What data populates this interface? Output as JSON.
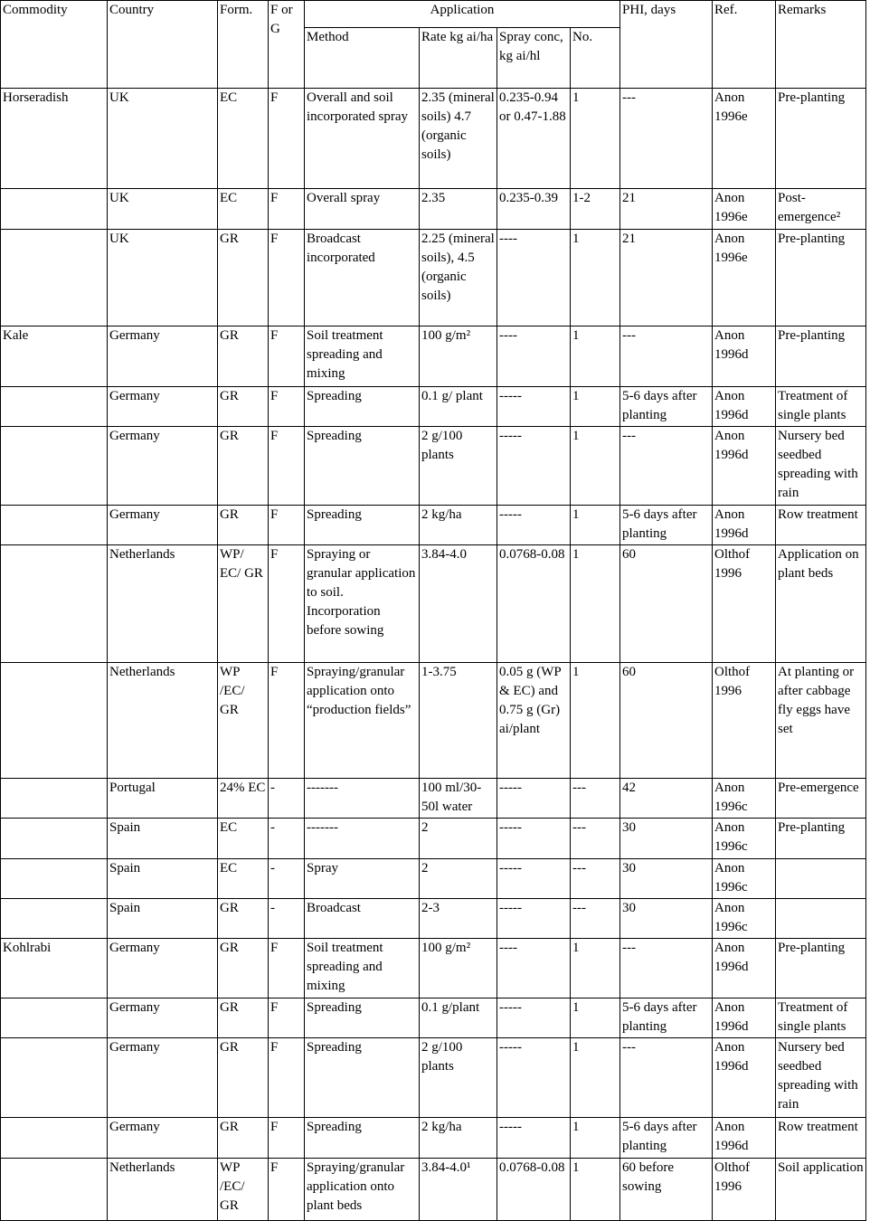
{
  "table": {
    "header": [
      "Commodity",
      "Country",
      "Form.",
      "F or G",
      "Application",
      "PHI, days",
      "Ref.",
      "Remarks"
    ],
    "subheader": [
      "Method",
      "Rate kg ai/ha",
      "Spray conc, kg ai/hl",
      "No."
    ],
    "rows": [
      [
        "Horseradish",
        "UK",
        "EC",
        "F",
        "Overall and soil incorporated spray",
        "2.35 (mineral soils) 4.7 (organic soils)",
        "0.235-0.94 or 0.47-1.88",
        "1",
        "---",
        "Anon 1996e",
        "Pre-planting"
      ],
      [
        null,
        "UK",
        "EC",
        "F",
        "Overall spray",
        "2.35",
        "0.235-0.39",
        "1-2",
        "21",
        "Anon 1996e",
        "Post-emergence²"
      ],
      [
        null,
        "UK",
        "GR",
        "F",
        "Broadcast incorporated",
        "2.25 (mineral soils), 4.5 (organic soils)",
        "----",
        "1",
        "21",
        "Anon 1996e",
        "Pre-planting"
      ],
      [
        "Kale",
        "Germany",
        "GR",
        "F",
        "Soil treatment spreading and mixing",
        "100 g/m²",
        "----",
        "1",
        "---",
        "Anon 1996d",
        "Pre-planting"
      ],
      [
        null,
        "Germany",
        "GR",
        "F",
        "Spreading",
        "0.1 g/ plant",
        "-----",
        "1",
        "5-6 days after planting",
        "Anon 1996d",
        "Treatment of single plants"
      ],
      [
        null,
        "Germany",
        "GR",
        "F",
        "Spreading",
        "2 g/100 plants",
        "-----",
        "1",
        "---",
        "Anon 1996d",
        "Nursery bed seedbed spreading with rain"
      ],
      [
        null,
        "Germany",
        "GR",
        "F",
        "Spreading",
        "2 kg/ha",
        "-----",
        "1",
        "5-6 days after planting",
        "Anon 1996d",
        "Row treatment"
      ],
      [
        null,
        "Netherlands",
        "WP/ EC/ GR",
        "F",
        "Spraying or granular application to soil. Incorporation before sowing",
        "3.84-4.0",
        "0.0768-0.08",
        "1",
        "60",
        "Olthof 1996",
        "Application on plant beds"
      ],
      [
        null,
        "Netherlands",
        "WP /EC/ GR",
        "F",
        "Spraying/granular application onto “production fields”",
        "1-3.75",
        "0.05 g (WP & EC) and 0.75 g (Gr) ai/plant",
        "1",
        "60",
        "Olthof 1996",
        "At planting or after cabbage fly eggs have set"
      ],
      [
        null,
        "Portugal",
        "24% EC",
        "-",
        "-------",
        "100 ml/30-50l water",
        "-----",
        "---",
        "42",
        "Anon 1996c",
        "Pre-emergence"
      ],
      [
        null,
        "Spain",
        "EC",
        "-",
        "-------",
        "2",
        "-----",
        "---",
        "30",
        "Anon 1996c",
        "Pre-planting"
      ],
      [
        null,
        "Spain",
        "EC",
        "-",
        "Spray",
        "2",
        "-----",
        "---",
        "30",
        "Anon 1996c",
        null
      ],
      [
        null,
        "Spain",
        "GR",
        "-",
        "Broadcast",
        "2-3",
        "-----",
        "---",
        "30",
        "Anon 1996c",
        null
      ],
      [
        "Kohlrabi",
        "Germany",
        "GR",
        "F",
        "Soil treatment spreading and mixing",
        "100 g/m²",
        "----",
        "1",
        "---",
        "Anon 1996d",
        "Pre-planting"
      ],
      [
        null,
        "Germany",
        "GR",
        "F",
        "Spreading",
        "0.1 g/plant",
        "-----",
        "1",
        "5-6 days after planting",
        "Anon 1996d",
        "Treatment of single plants"
      ],
      [
        null,
        "Germany",
        "GR",
        "F",
        "Spreading",
        "2 g/100 plants",
        "-----",
        "1",
        "---",
        "Anon 1996d",
        "Nursery bed seedbed spreading with rain"
      ],
      [
        null,
        "Germany",
        "GR",
        "F",
        "Spreading",
        "2 kg/ha",
        "-----",
        "1",
        "5-6 days after planting",
        "Anon 1996d",
        "Row treatment"
      ],
      [
        null,
        "Netherlands",
        "WP /EC/ GR",
        "F",
        "Spraying/granular application onto plant beds",
        "3.84-4.0¹",
        "0.0768-0.08",
        "1",
        "60 before sowing",
        "Olthof 1996",
        "Soil application"
      ]
    ]
  }
}
